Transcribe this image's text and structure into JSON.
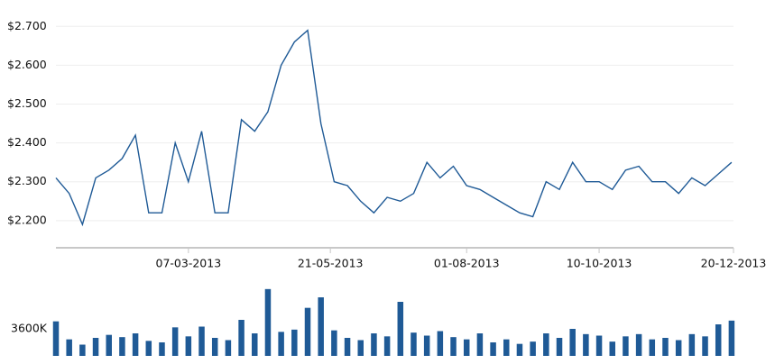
{
  "chart_data": [
    {
      "type": "line",
      "x": [
        "27-12-2012",
        "03-01-2013",
        "10-01-2013",
        "17-01-2013",
        "24-01-2013",
        "31-01-2013",
        "07-02-2013",
        "14-02-2013",
        "21-02-2013",
        "28-02-2013",
        "07-03-2013",
        "14-03-2013",
        "21-03-2013",
        "28-03-2013",
        "04-04-2013",
        "11-04-2013",
        "18-04-2013",
        "25-04-2013",
        "02-05-2013",
        "09-05-2013",
        "16-05-2013",
        "23-05-2013",
        "30-05-2013",
        "06-06-2013",
        "13-06-2013",
        "20-06-2013",
        "27-06-2013",
        "04-07-2013",
        "11-07-2013",
        "18-07-2013",
        "25-07-2013",
        "01-08-2013",
        "08-08-2013",
        "15-08-2013",
        "22-08-2013",
        "29-08-2013",
        "05-09-2013",
        "12-09-2013",
        "19-09-2013",
        "26-09-2013",
        "03-10-2013",
        "10-10-2013",
        "17-10-2013",
        "24-10-2013",
        "31-10-2013",
        "07-11-2013",
        "14-11-2013",
        "21-11-2013",
        "28-11-2013",
        "05-12-2013",
        "12-12-2013",
        "19-12-2013"
      ],
      "series": [
        {
          "color": "#1f5a96",
          "values": [
            2.31,
            2.27,
            2.19,
            2.31,
            2.33,
            2.36,
            2.42,
            2.22,
            2.22,
            2.4,
            2.3,
            2.43,
            2.22,
            2.22,
            2.46,
            2.43,
            2.48,
            2.6,
            2.66,
            2.69,
            2.45,
            2.3,
            2.29,
            2.25,
            2.22,
            2.26,
            2.25,
            2.27,
            2.35,
            2.31,
            2.34,
            2.29,
            2.28,
            2.26,
            2.24,
            2.22,
            2.21,
            2.3,
            2.28,
            2.35,
            2.3,
            2.3,
            2.28,
            2.33,
            2.34,
            2.3,
            2.3,
            2.27,
            2.31,
            2.29,
            2.32,
            2.35
          ]
        }
      ],
      "xlim": [
        "27-12-2012",
        "20-12-2013"
      ],
      "xticks": [
        "07-03-2013",
        "21-05-2013",
        "01-08-2013",
        "10-10-2013",
        "20-12-2013"
      ],
      "ylim": [
        2.13,
        2.71
      ],
      "yticks": [
        {
          "value": 2.2,
          "label": "$2.200"
        },
        {
          "value": 2.3,
          "label": "$2.300"
        },
        {
          "value": 2.4,
          "label": "$2.400"
        },
        {
          "value": 2.5,
          "label": "$2.500"
        },
        {
          "value": 2.6,
          "label": "$2.600"
        },
        {
          "value": 2.7,
          "label": "$2.700"
        }
      ],
      "grid": true
    },
    {
      "type": "bar",
      "x": [
        "27-12-2012",
        "03-01-2013",
        "10-01-2013",
        "17-01-2013",
        "24-01-2013",
        "31-01-2013",
        "07-02-2013",
        "14-02-2013",
        "21-02-2013",
        "28-02-2013",
        "07-03-2013",
        "14-03-2013",
        "21-03-2013",
        "28-03-2013",
        "04-04-2013",
        "11-04-2013",
        "18-04-2013",
        "25-04-2013",
        "02-05-2013",
        "09-05-2013",
        "16-05-2013",
        "23-05-2013",
        "30-05-2013",
        "06-06-2013",
        "13-06-2013",
        "20-06-2013",
        "27-06-2013",
        "04-07-2013",
        "11-07-2013",
        "18-07-2013",
        "25-07-2013",
        "01-08-2013",
        "08-08-2013",
        "15-08-2013",
        "22-08-2013",
        "29-08-2013",
        "05-09-2013",
        "12-09-2013",
        "19-09-2013",
        "26-09-2013",
        "03-10-2013",
        "10-10-2013",
        "17-10-2013",
        "24-10-2013",
        "31-10-2013",
        "07-11-2013",
        "14-11-2013",
        "21-11-2013",
        "28-11-2013",
        "05-12-2013",
        "12-12-2013",
        "19-12-2013"
      ],
      "series": [
        {
          "color": "#1f5a96",
          "values": [
            4600000,
            2200000,
            1500000,
            2400000,
            2800000,
            2500000,
            3000000,
            2000000,
            1800000,
            3800000,
            2600000,
            3900000,
            2400000,
            2100000,
            4800000,
            3000000,
            8900000,
            3200000,
            3500000,
            6400000,
            7800000,
            3400000,
            2400000,
            2100000,
            3000000,
            2600000,
            7200000,
            3100000,
            2700000,
            3300000,
            2500000,
            2200000,
            3000000,
            1800000,
            2200000,
            1600000,
            1900000,
            3000000,
            2400000,
            3600000,
            2900000,
            2700000,
            1900000,
            2600000,
            2900000,
            2200000,
            2400000,
            2100000,
            2900000,
            2600000,
            4200000,
            4700000
          ]
        }
      ],
      "xlim": [
        "27-12-2012",
        "20-12-2013"
      ],
      "ylim": [
        0,
        9000000
      ],
      "yticks": [
        {
          "value": 3600000,
          "label": "3600K"
        }
      ]
    }
  ]
}
